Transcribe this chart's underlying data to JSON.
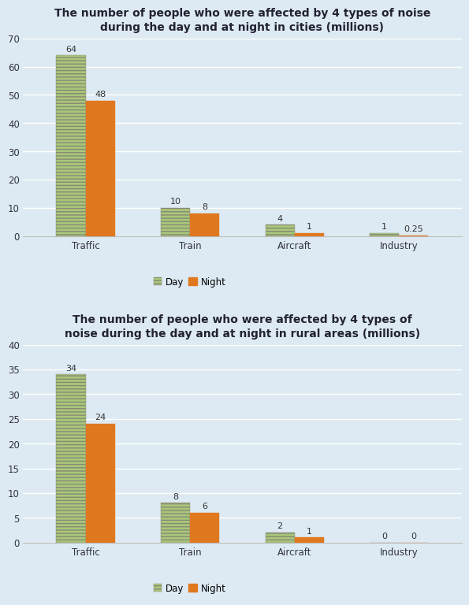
{
  "chart1": {
    "title": "The number of people who were affected by 4 types of noise\nduring the day and at night in cities (millions)",
    "categories": [
      "Traffic",
      "Train",
      "Aircraft",
      "Industry"
    ],
    "day_values": [
      64,
      10,
      4,
      1
    ],
    "night_values": [
      48,
      8,
      1,
      0.25
    ],
    "ylim": [
      0,
      70
    ],
    "yticks": [
      0,
      10,
      20,
      30,
      40,
      50,
      60,
      70
    ]
  },
  "chart2": {
    "title": "The number of people who were affected by 4 types of\nnoise during the day and at night in rural areas (millions)",
    "categories": [
      "Traffic",
      "Train",
      "Aircraft",
      "Industry"
    ],
    "day_values": [
      34,
      8,
      2,
      0
    ],
    "night_values": [
      24,
      6,
      1,
      0
    ],
    "ylim": [
      0,
      40
    ],
    "yticks": [
      0,
      5,
      10,
      15,
      20,
      25,
      30,
      35,
      40
    ]
  },
  "day_color": "#a8c878",
  "night_color": "#e07820",
  "bg_color": "#ddeaf3",
  "bar_width": 0.28,
  "title_fontsize": 10,
  "label_fontsize": 8.5,
  "tick_fontsize": 8.5,
  "value_fontsize": 8
}
